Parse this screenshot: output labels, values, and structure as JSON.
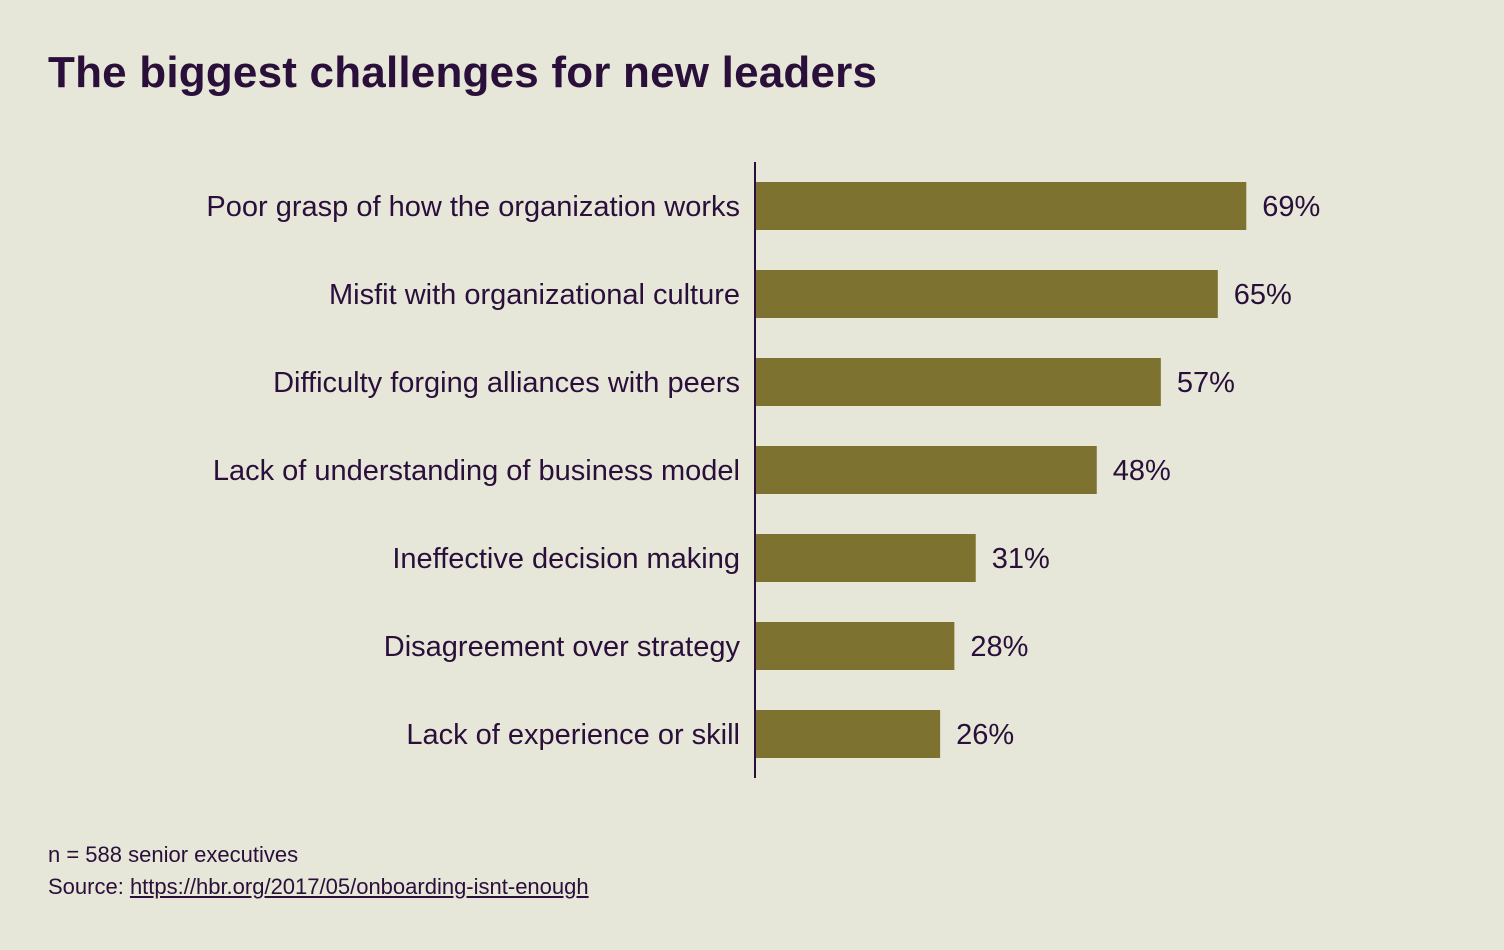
{
  "chart_data": {
    "type": "bar",
    "orientation": "horizontal",
    "title": "The biggest challenges for new leaders",
    "categories": [
      "Poor grasp of how the organization works",
      "Misfit with organizational culture",
      "Difficulty forging alliances with peers",
      "Lack of understanding of business model",
      "Ineffective decision making",
      "Disagreement over strategy",
      "Lack of experience or skill"
    ],
    "values": [
      69,
      65,
      57,
      48,
      31,
      28,
      26
    ],
    "value_labels": [
      "69%",
      "65%",
      "57%",
      "48%",
      "31%",
      "28%",
      "26%"
    ],
    "xlim": [
      0,
      100
    ],
    "grid": false,
    "bar_color": "#7d722f",
    "text_color": "#2a0f3a",
    "background_color": "#e6e6d9"
  },
  "footer": {
    "note": "n = 588 senior executives",
    "source_prefix": "Source: ",
    "source_link": "https://hbr.org/2017/05/onboarding-isnt-enough"
  }
}
